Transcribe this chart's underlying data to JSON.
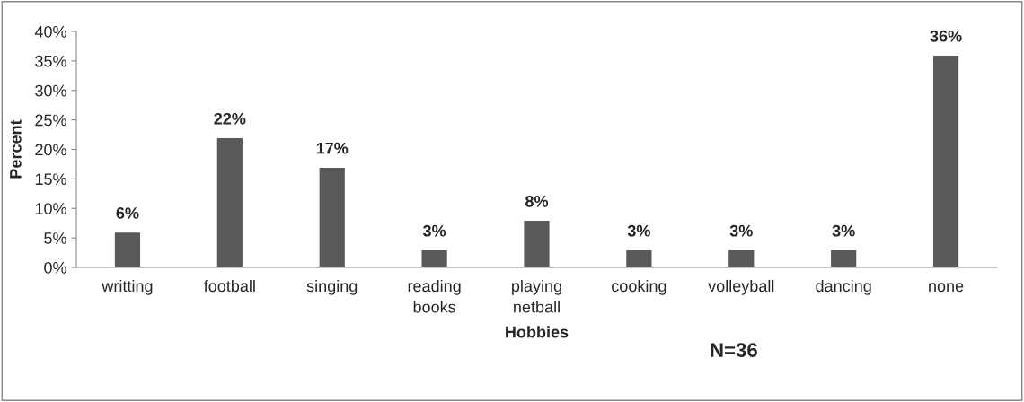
{
  "chart_data": {
    "type": "bar",
    "xlabel": "Hobbies",
    "ylabel": "Percent",
    "categories": [
      "writting",
      "football",
      "singing",
      "reading\nbooks",
      "playing\nnetball",
      "cooking",
      "volleyball",
      "dancing",
      "none"
    ],
    "values": [
      6,
      22,
      17,
      3,
      8,
      3,
      3,
      3,
      36
    ],
    "value_labels": [
      "6%",
      "22%",
      "17%",
      "3%",
      "8%",
      "3%",
      "3%",
      "3%",
      "36%"
    ],
    "color": "#595959",
    "ylim": [
      0,
      40
    ],
    "yticks": [
      {
        "value": 0,
        "label": "0%"
      },
      {
        "value": 5,
        "label": "5%"
      },
      {
        "value": 10,
        "label": "10%"
      },
      {
        "value": 15,
        "label": "15%"
      },
      {
        "value": 20,
        "label": "20%"
      },
      {
        "value": 25,
        "label": "25%"
      },
      {
        "value": 30,
        "label": "30%"
      },
      {
        "value": 35,
        "label": "35%"
      },
      {
        "value": 40,
        "label": "40%"
      }
    ],
    "grid": false,
    "legend": false,
    "annotations": [
      "N=36"
    ]
  }
}
